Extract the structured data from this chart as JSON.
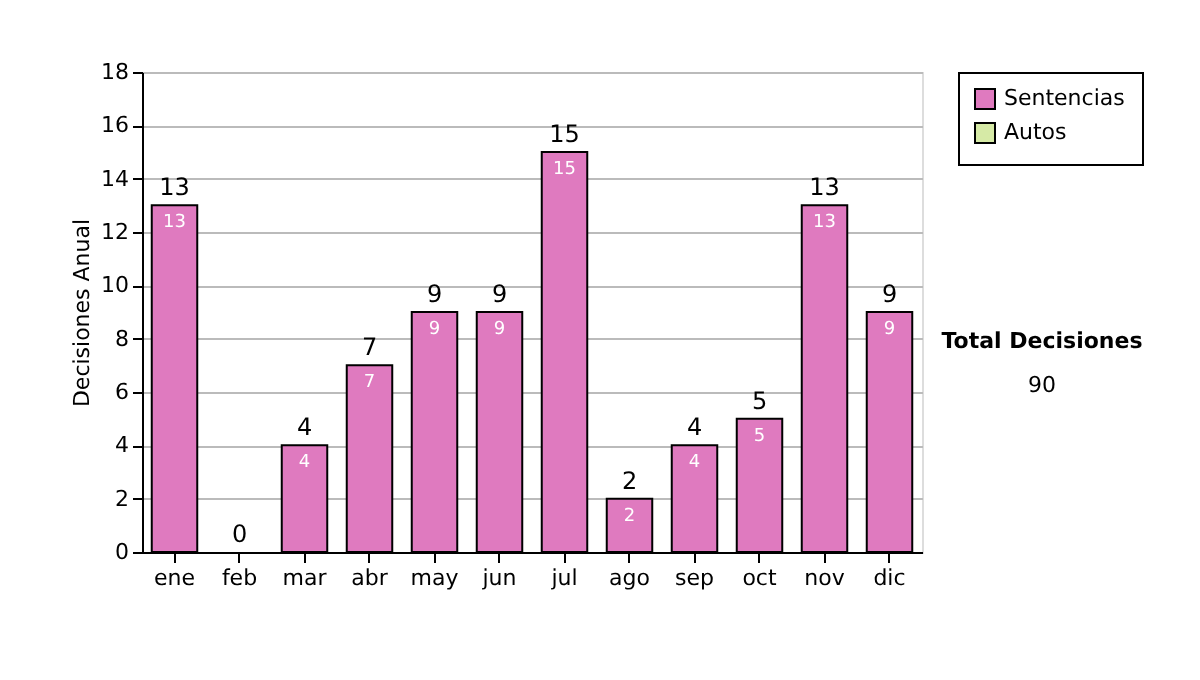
{
  "chart_data": {
    "type": "bar",
    "stacked": true,
    "ylabel": "Decisiones Anual",
    "categories": [
      "ene",
      "feb",
      "mar",
      "abr",
      "may",
      "jun",
      "jul",
      "ago",
      "sep",
      "oct",
      "nov",
      "dic"
    ],
    "series": [
      {
        "name": "Sentencias",
        "color": "#df7abf",
        "values": [
          13,
          0,
          4,
          7,
          9,
          9,
          15,
          2,
          4,
          5,
          13,
          9
        ],
        "value_labels": [
          "13",
          null,
          "4",
          "7",
          "9",
          "9",
          "15",
          "2",
          "4",
          "5",
          "13",
          "9"
        ]
      },
      {
        "name": "Autos",
        "color": "#d6eaa6",
        "values": [
          null,
          null,
          null,
          null,
          null,
          null,
          null,
          null,
          null,
          null,
          null,
          null
        ]
      }
    ],
    "totals": [
      "13",
      "0",
      "4",
      "7",
      "9",
      "9",
      "15",
      "2",
      "4",
      "5",
      "13",
      "9"
    ],
    "ylim": [
      0,
      18
    ],
    "yticks": [
      0,
      2,
      4,
      6,
      8,
      10,
      12,
      14,
      16,
      18
    ],
    "grid": "y",
    "legend": "right",
    "annotations": [
      "Total Decisiones",
      "90"
    ]
  }
}
